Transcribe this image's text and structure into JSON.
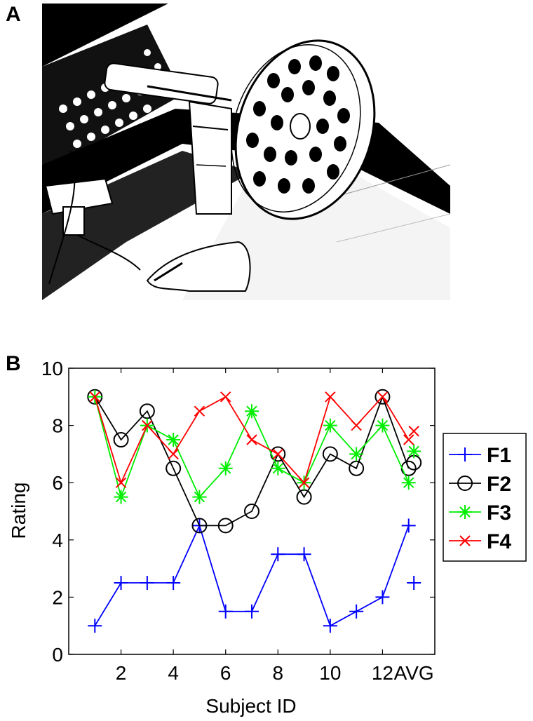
{
  "panels": {
    "a_label": "A",
    "b_label": "B"
  },
  "photo": {
    "description_icon": "photo-icon"
  },
  "chart_data": {
    "type": "line",
    "xlabel": "Subject ID",
    "ylabel": "Rating",
    "xlim": [
      0,
      14
    ],
    "ylim": [
      0,
      10
    ],
    "x_ticks": [
      2,
      4,
      6,
      8,
      10,
      12
    ],
    "x_tick_labels": [
      "2",
      "4",
      "6",
      "8",
      "10",
      "12"
    ],
    "extra_tick_label": "AVG",
    "extra_tick_position": 13.2,
    "y_ticks": [
      0,
      2,
      4,
      6,
      8,
      10
    ],
    "y_tick_labels": [
      "0",
      "2",
      "4",
      "6",
      "8",
      "10"
    ],
    "grid": false,
    "legend_position": "right",
    "x": [
      1,
      2,
      3,
      4,
      5,
      6,
      7,
      8,
      9,
      10,
      11,
      12,
      13
    ],
    "series": [
      {
        "name": "F1",
        "color": "#0000ff",
        "marker": "plus",
        "values": [
          1,
          2.5,
          2.5,
          2.5,
          4.5,
          1.5,
          1.5,
          3.5,
          3.5,
          1,
          1.5,
          2,
          4.5
        ],
        "avg": 2.5
      },
      {
        "name": "F2",
        "color": "#000000",
        "marker": "circle",
        "values": [
          9,
          7.5,
          8.5,
          6.5,
          4.5,
          4.5,
          5,
          7,
          5.5,
          7,
          6.5,
          9,
          6.5
        ],
        "avg": 6.7
      },
      {
        "name": "F3",
        "color": "#00ee00",
        "marker": "star",
        "values": [
          9,
          5.5,
          8,
          7.5,
          5.5,
          6.5,
          8.5,
          6.5,
          6,
          8,
          7,
          8,
          6
        ],
        "avg": 7.1
      },
      {
        "name": "F4",
        "color": "#ff0000",
        "marker": "x",
        "values": [
          9,
          6,
          8,
          7,
          8.5,
          9,
          7.5,
          7,
          6,
          9,
          8,
          9,
          7.5
        ],
        "avg": 7.8
      }
    ]
  }
}
